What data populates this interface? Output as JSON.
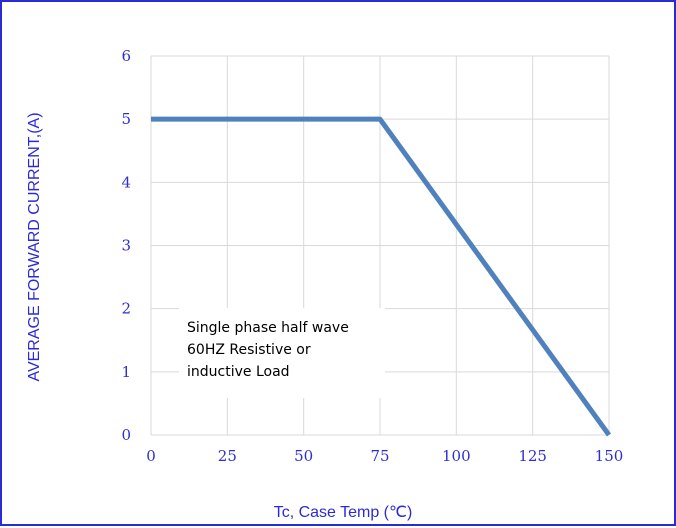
{
  "chart_data": {
    "type": "line",
    "xlabel": "Tc, Case Temp (℃)",
    "ylabel": "AVERAGE FORWARD CURRENT,(A)",
    "xlim": [
      0,
      150
    ],
    "ylim": [
      0,
      6
    ],
    "x_ticks": [
      0,
      25,
      50,
      75,
      100,
      125,
      150
    ],
    "y_ticks": [
      0,
      1,
      2,
      3,
      4,
      5,
      6
    ],
    "grid": true,
    "series": [
      {
        "x": [
          0,
          75,
          150
        ],
        "y": [
          5,
          5,
          0
        ]
      }
    ],
    "annotation": [
      "Single phase half wave",
      "60HZ Resistive or",
      "inductive Load"
    ],
    "colors": {
      "line": "#4f81bd",
      "grid": "#d9d9d9",
      "text": "#2f2fd0",
      "border": "#2b2bd6"
    }
  }
}
